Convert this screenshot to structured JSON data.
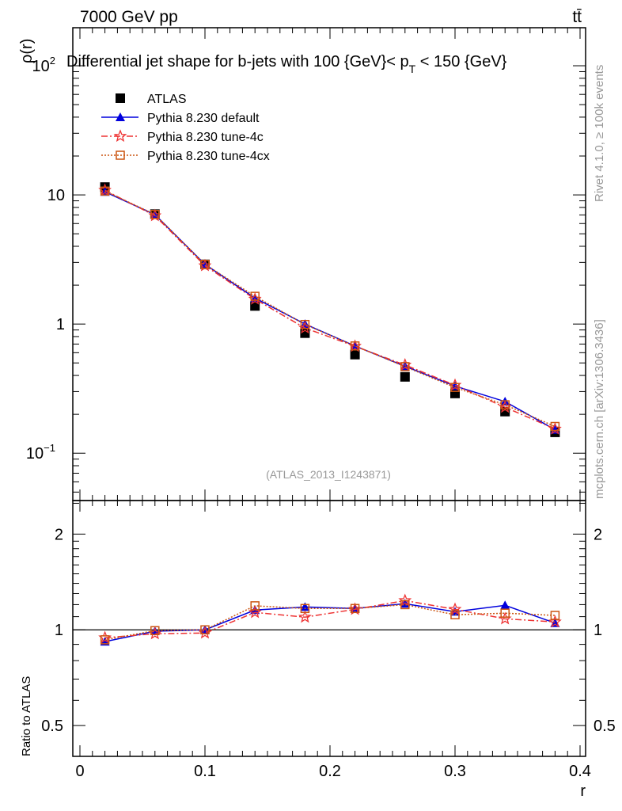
{
  "header": {
    "left": "7000 GeV pp",
    "right": "tt̄"
  },
  "side": {
    "rivet": "Rivet 4.1.0, ≥ 100k events",
    "mcplots": "mcplots.cern.ch [arXiv:1306.3436]"
  },
  "chart_data": {
    "type": "line",
    "title": "Differential jet shape for b-jets with 100 {GeV}< p_T < 150 {GeV}",
    "title_main": "Differential jet shape for b-jets with 100 {GeV}< p",
    "title_sub": "T",
    "title_end": " < 150 {GeV}",
    "analysis": "(ATLAS_2013_I1243871)",
    "xlabel": "r",
    "ylabel": "ρ(r)",
    "ratio_ylabel": "Ratio to ATLAS",
    "xlim": [
      0,
      0.4
    ],
    "ylim": [
      0.043,
      197
    ],
    "yscale": "log",
    "ratio_ylim": [
      0.4,
      2.55
    ],
    "xticks": [
      "0",
      "0.1",
      "0.2",
      "0.3",
      "0.4"
    ],
    "yticks": [
      "10^-1",
      "1",
      "10",
      "10^2"
    ],
    "ratio_yticks": [
      "0.5",
      "1",
      "2"
    ],
    "legend_position": "top-left",
    "x": [
      0.02,
      0.06,
      0.1,
      0.14,
      0.18,
      0.22,
      0.26,
      0.3,
      0.34,
      0.38
    ],
    "series": [
      {
        "name": "ATLAS",
        "color": "#000000",
        "marker": "square",
        "dash": "",
        "values": [
          11.5,
          7.1,
          2.9,
          1.38,
          0.85,
          0.58,
          0.39,
          0.29,
          0.21,
          0.145
        ],
        "ratio": [
          1,
          1,
          1,
          1,
          1,
          1,
          1,
          1,
          1,
          1
        ]
      },
      {
        "name": "Pythia 8.230 default",
        "color": "#0000dd",
        "marker": "triangle",
        "dash": "",
        "values": [
          10.56,
          7.03,
          2.9,
          1.59,
          1.0,
          0.677,
          0.471,
          0.331,
          0.251,
          0.152
        ],
        "ratio": [
          0.918,
          0.99,
          1.0,
          1.154,
          1.18,
          1.167,
          1.208,
          1.14,
          1.194,
          1.05
        ]
      },
      {
        "name": "Pythia 8.230 tune-4c",
        "color": "#ee3333",
        "marker": "star",
        "dash": "8,3,2,3",
        "values": [
          10.86,
          6.9,
          2.83,
          1.56,
          0.932,
          0.673,
          0.482,
          0.336,
          0.227,
          0.154
        ],
        "ratio": [
          0.944,
          0.972,
          0.977,
          1.134,
          1.096,
          1.16,
          1.236,
          1.16,
          1.083,
          1.059
        ]
      },
      {
        "name": "Pythia 8.230 tune-4cx",
        "color": "#cc5511",
        "marker": "open-square",
        "dash": "2,2",
        "values": [
          10.7,
          7.06,
          2.9,
          1.64,
          0.992,
          0.677,
          0.468,
          0.323,
          0.237,
          0.161
        ],
        "ratio": [
          0.93,
          0.994,
          1.0,
          1.19,
          1.167,
          1.167,
          1.2,
          1.115,
          1.128,
          1.11
        ]
      }
    ]
  }
}
